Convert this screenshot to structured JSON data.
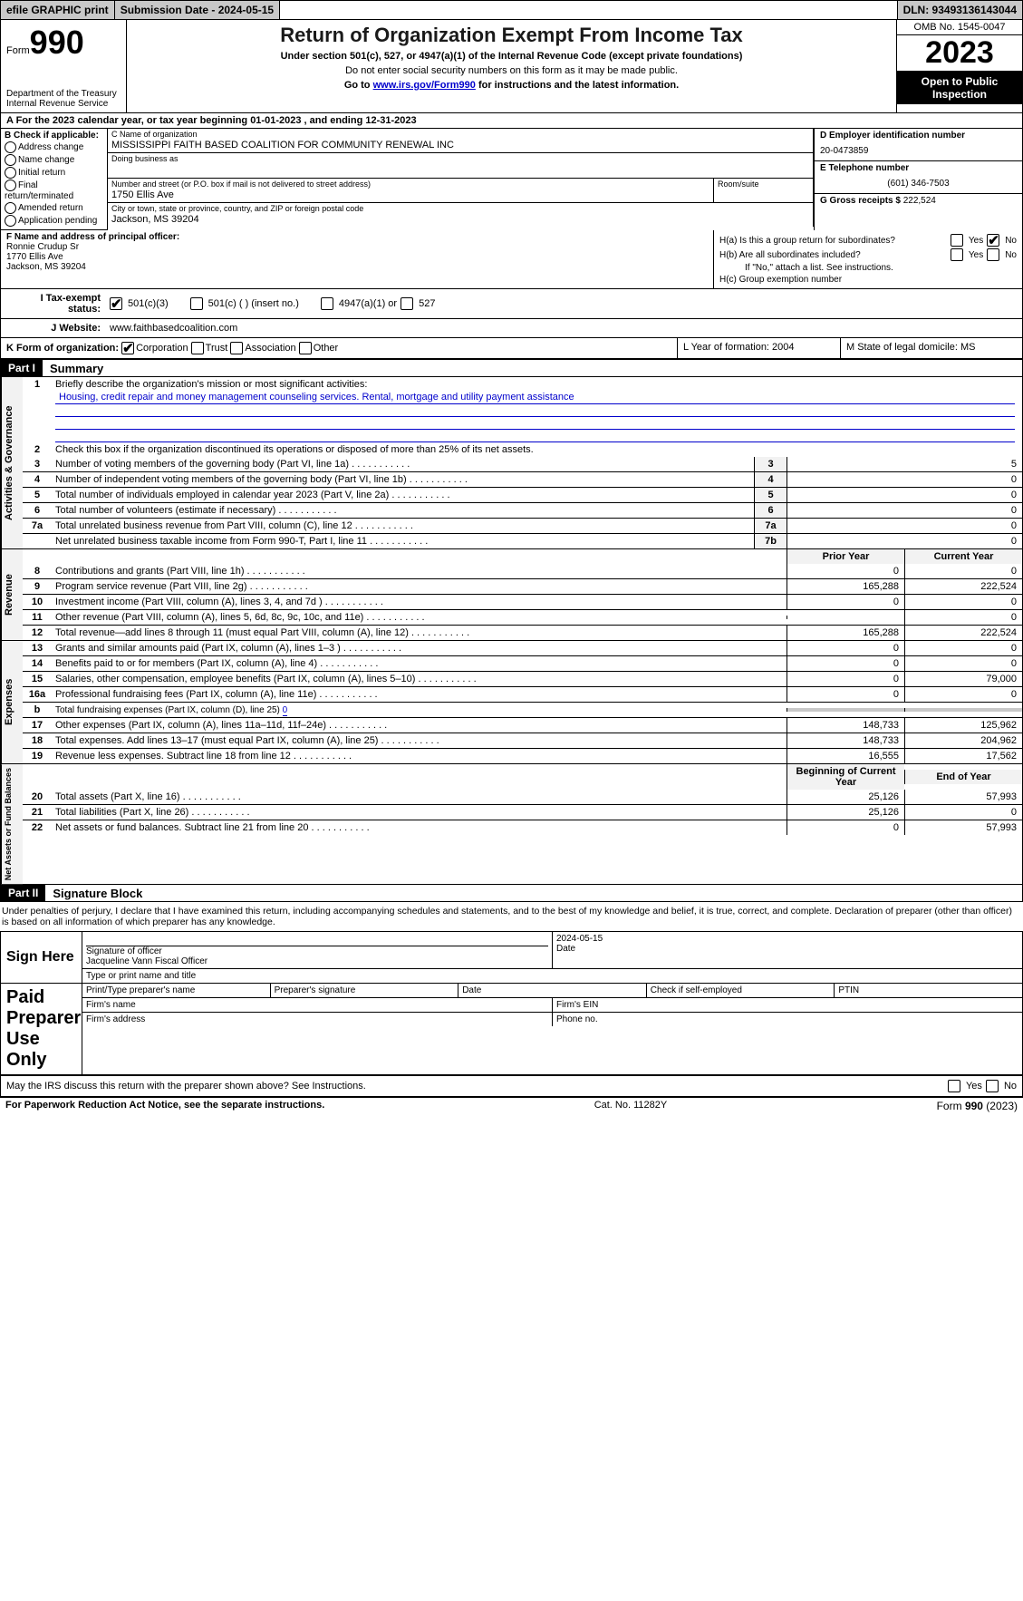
{
  "colors": {
    "bg_grey": "#c8c8c8",
    "link": "#0000cc",
    "light_grey": "#f2f2f2"
  },
  "topbar": {
    "efile": "efile GRAPHIC print",
    "sub_date_label": "Submission Date - 2024-05-15",
    "dln": "DLN: 93493136143044"
  },
  "header": {
    "form_word": "Form",
    "form_num": "990",
    "dept": "Department of the Treasury\nInternal Revenue Service",
    "title": "Return of Organization Exempt From Income Tax",
    "sub1": "Under section 501(c), 527, or 4947(a)(1) of the Internal Revenue Code (except private foundations)",
    "sub2": "Do not enter social security numbers on this form as it may be made public.",
    "sub3_pre": "Go to ",
    "sub3_link": "www.irs.gov/Form990",
    "sub3_post": " for instructions and the latest information.",
    "omb": "OMB No. 1545-0047",
    "year": "2023",
    "open": "Open to Public Inspection"
  },
  "row_a": "A For the 2023 calendar year, or tax year beginning 01-01-2023   , and ending 12-31-2023",
  "box_b": {
    "label": "B Check if applicable:",
    "opts": [
      "Address change",
      "Name change",
      "Initial return",
      "Final return/terminated",
      "Amended return",
      "Application pending"
    ]
  },
  "box_c": {
    "name_lbl": "C Name of organization",
    "name": "MISSISSIPPI FAITH BASED COALITION FOR COMMUNITY RENEWAL INC",
    "dba_lbl": "Doing business as",
    "dba": "",
    "street_lbl": "Number and street (or P.O. box if mail is not delivered to street address)",
    "street": "1750 Ellis Ave",
    "room_lbl": "Room/suite",
    "room": "",
    "city_lbl": "City or town, state or province, country, and ZIP or foreign postal code",
    "city": "Jackson, MS  39204"
  },
  "box_d": {
    "lbl": "D Employer identification number",
    "val": "20-0473859"
  },
  "box_e": {
    "lbl": "E Telephone number",
    "val": "(601) 346-7503"
  },
  "box_g": {
    "lbl": "G Gross receipts $",
    "val": "222,524"
  },
  "box_f": {
    "lbl": "F  Name and address of principal officer:",
    "val": "Ronnie Crudup Sr\n1770 Ellis Ave\nJackson, MS  39204"
  },
  "box_h": {
    "a": "H(a)  Is this a group return for subordinates?",
    "b": "H(b)  Are all subordinates included?",
    "note": "If \"No,\" attach a list. See instructions.",
    "c": "H(c)  Group exemption number",
    "yes": "Yes",
    "no": "No"
  },
  "row_i": {
    "lbl": "I   Tax-exempt status:",
    "o1": "501(c)(3)",
    "o2": "501(c) (  ) (insert no.)",
    "o3": "4947(a)(1) or",
    "o4": "527"
  },
  "row_j": {
    "lbl": "J   Website:",
    "val": "www.faithbasedcoalition.com"
  },
  "row_k": {
    "lbl": "K Form of organization:",
    "o1": "Corporation",
    "o2": "Trust",
    "o3": "Association",
    "o4": "Other"
  },
  "box_l": "L Year of formation: 2004",
  "box_m": "M State of legal domicile: MS",
  "part1": {
    "hdr": "Part I",
    "title": "Summary"
  },
  "p1": {
    "l1": "Briefly describe the organization's mission or most significant activities:",
    "l1val": "Housing, credit repair and money management counseling services. Rental, mortgage and utility payment assistance",
    "l2": "Check this box        if the organization discontinued its operations or disposed of more than 25% of its net assets.",
    "lines": [
      {
        "n": "3",
        "t": "Number of voting members of the governing body (Part VI, line 1a)",
        "box": "3",
        "v": "5"
      },
      {
        "n": "4",
        "t": "Number of independent voting members of the governing body (Part VI, line 1b)",
        "box": "4",
        "v": "0"
      },
      {
        "n": "5",
        "t": "Total number of individuals employed in calendar year 2023 (Part V, line 2a)",
        "box": "5",
        "v": "0"
      },
      {
        "n": "6",
        "t": "Total number of volunteers (estimate if necessary)",
        "box": "6",
        "v": "0"
      },
      {
        "n": "7a",
        "t": "Total unrelated business revenue from Part VIII, column (C), line 12",
        "box": "7a",
        "v": "0"
      },
      {
        "n": "",
        "t": "Net unrelated business taxable income from Form 990-T, Part I, line 11",
        "box": "7b",
        "v": "0"
      }
    ]
  },
  "rev_head": {
    "py": "Prior Year",
    "cy": "Current Year"
  },
  "rev_lines": [
    {
      "n": "8",
      "t": "Contributions and grants (Part VIII, line 1h)",
      "py": "0",
      "cy": "0"
    },
    {
      "n": "9",
      "t": "Program service revenue (Part VIII, line 2g)",
      "py": "165,288",
      "cy": "222,524"
    },
    {
      "n": "10",
      "t": "Investment income (Part VIII, column (A), lines 3, 4, and 7d )",
      "py": "0",
      "cy": "0"
    },
    {
      "n": "11",
      "t": "Other revenue (Part VIII, column (A), lines 5, 6d, 8c, 9c, 10c, and 11e)",
      "py": "",
      "cy": "0"
    },
    {
      "n": "12",
      "t": "Total revenue—add lines 8 through 11 (must equal Part VIII, column (A), line 12)",
      "py": "165,288",
      "cy": "222,524"
    }
  ],
  "exp_lines": [
    {
      "n": "13",
      "t": "Grants and similar amounts paid (Part IX, column (A), lines 1–3 )",
      "py": "0",
      "cy": "0"
    },
    {
      "n": "14",
      "t": "Benefits paid to or for members (Part IX, column (A), line 4)",
      "py": "0",
      "cy": "0"
    },
    {
      "n": "15",
      "t": "Salaries, other compensation, employee benefits (Part IX, column (A), lines 5–10)",
      "py": "0",
      "cy": "79,000"
    },
    {
      "n": "16a",
      "t": "Professional fundraising fees (Part IX, column (A), line 11e)",
      "py": "0",
      "cy": "0"
    },
    {
      "n": "b",
      "t": "Total fundraising expenses (Part IX, column (D), line 25) 0",
      "py": "grey",
      "cy": "grey"
    },
    {
      "n": "17",
      "t": "Other expenses (Part IX, column (A), lines 11a–11d, 11f–24e)",
      "py": "148,733",
      "cy": "125,962"
    },
    {
      "n": "18",
      "t": "Total expenses. Add lines 13–17 (must equal Part IX, column (A), line 25)",
      "py": "148,733",
      "cy": "204,962"
    },
    {
      "n": "19",
      "t": "Revenue less expenses. Subtract line 18 from line 12",
      "py": "16,555",
      "cy": "17,562"
    }
  ],
  "na_head": {
    "b": "Beginning of Current Year",
    "e": "End of Year"
  },
  "na_lines": [
    {
      "n": "20",
      "t": "Total assets (Part X, line 16)",
      "b": "25,126",
      "e": "57,993"
    },
    {
      "n": "21",
      "t": "Total liabilities (Part X, line 26)",
      "b": "25,126",
      "e": "0"
    },
    {
      "n": "22",
      "t": "Net assets or fund balances. Subtract line 21 from line 20",
      "b": "0",
      "e": "57,993"
    }
  ],
  "sidelabels": {
    "ag": "Activities & Governance",
    "rev": "Revenue",
    "exp": "Expenses",
    "na": "Net Assets or Fund Balances"
  },
  "part2": {
    "hdr": "Part II",
    "title": "Signature Block"
  },
  "perjury": "Under penalties of perjury, I declare that I have examined this return, including accompanying schedules and statements, and to the best of my knowledge and belief, it is true, correct, and complete. Declaration of preparer (other than officer) is based on all information of which preparer has any knowledge.",
  "sig": {
    "sign_here": "Sign Here",
    "date": "2024-05-15",
    "sig_officer_lbl": "Signature of officer",
    "officer": "Jacqueline Vann  Fiscal Officer",
    "type_lbl": "Type or print name and title",
    "paid": "Paid Preparer Use Only",
    "prep_name": "Print/Type preparer's name",
    "prep_sig": "Preparer's signature",
    "date_lbl": "Date",
    "check_self": "Check        if self-employed",
    "ptin": "PTIN",
    "firm_name": "Firm's name",
    "firm_ein": "Firm's EIN",
    "firm_addr": "Firm's address",
    "phone": "Phone no."
  },
  "discuss": "May the IRS discuss this return with the preparer shown above? See Instructions.",
  "footer": {
    "left": "For Paperwork Reduction Act Notice, see the separate instructions.",
    "mid": "Cat. No. 11282Y",
    "right": "Form 990 (2023)"
  }
}
